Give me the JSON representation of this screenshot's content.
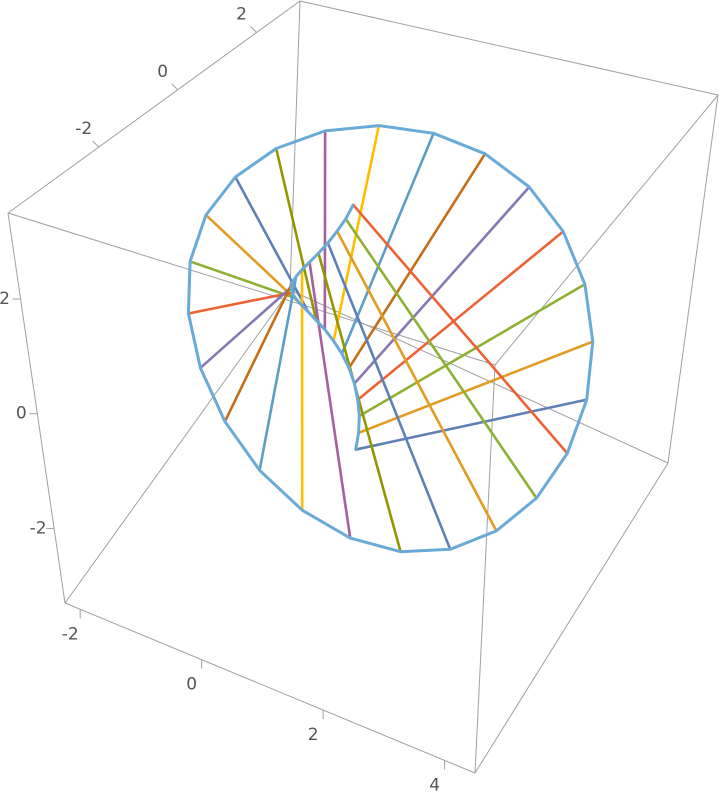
{
  "chart_data": {
    "type": "ruled-surface-3d",
    "xlim": [
      -2.25,
      4.5
    ],
    "ylim": [
      -4.3,
      3.1
    ],
    "zlim": [
      -3.3,
      3.5
    ],
    "xticks": [
      -2,
      0,
      2,
      4
    ],
    "yticks": [
      -2,
      0,
      2
    ],
    "zticks": [
      -2,
      0,
      2
    ],
    "colors": [
      "#5e81b5",
      "#e19c24",
      "#8fb032",
      "#eb6235",
      "#8778b3",
      "#c56e1a",
      "#5d9ec7",
      "#ffbf00",
      "#a5609d",
      "#929600"
    ],
    "edge_color": "#6aaad6",
    "inner": {
      "x": [
        0.5,
        0.48,
        0.43,
        0.35,
        0.25,
        0.13,
        0,
        -0.13,
        -0.25,
        -0.35,
        -0.43,
        -0.48,
        -0.5,
        -0.48,
        -0.43,
        -0.35,
        -0.25,
        -0.13,
        0,
        0.13,
        0.25,
        0.35,
        0.43,
        0.48
      ],
      "y": [
        0,
        0.13,
        0.25,
        0.35,
        0.43,
        0.48,
        0.5,
        0.48,
        0.43,
        0.35,
        0.25,
        0.13,
        0,
        -0.13,
        -0.25,
        -0.35,
        -0.43,
        -0.48,
        -0.5,
        -0.48,
        -0.43,
        -0.35,
        -0.25,
        -0.13
      ],
      "z": [
        -2.5,
        -2.29,
        -2.08,
        -1.88,
        -1.67,
        -1.46,
        -1.25,
        -1.04,
        -0.83,
        -0.63,
        -0.42,
        -0.21,
        0,
        0.21,
        0.42,
        0.63,
        0.83,
        1.04,
        1.25,
        1.46,
        1.67,
        1.88,
        2.08,
        2.29
      ]
    },
    "outer": {
      "x": [
        4.2,
        4.09,
        3.77,
        3.26,
        2.6,
        1.83,
        1,
        0.17,
        -0.6,
        -1.26,
        -1.77,
        -2.09,
        -2.2,
        -2.09,
        -1.77,
        -1.26,
        -0.6,
        0.17,
        1,
        1.83,
        2.6,
        3.26,
        3.77,
        4.09
      ],
      "y": [
        0,
        0.31,
        0.6,
        0.85,
        1.04,
        1.16,
        1.2,
        1.16,
        1.04,
        0.85,
        0.6,
        0.31,
        0,
        -0.31,
        -0.6,
        -0.85,
        -1.04,
        -1.16,
        -1.2,
        -1.16,
        -1.04,
        -0.85,
        -0.6,
        -0.31
      ],
      "z": [
        0,
        0.78,
        1.5,
        2.12,
        2.6,
        2.9,
        3,
        2.9,
        2.6,
        2.12,
        1.5,
        0.78,
        0,
        -0.78,
        -1.5,
        -2.12,
        -2.6,
        -2.9,
        -3,
        -2.9,
        -2.6,
        -2.12,
        -1.5,
        -0.78
      ]
    }
  }
}
